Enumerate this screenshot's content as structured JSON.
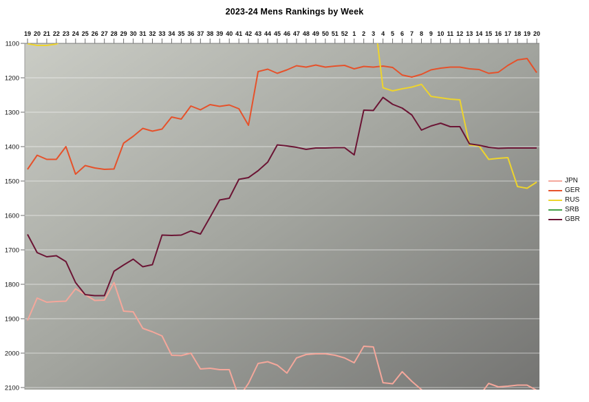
{
  "chart_data": {
    "type": "line",
    "title": "2023-24 Mens Rankings by Week",
    "xlabel": "",
    "ylabel": "",
    "x_axis_position": "top",
    "x_tick_labels": [
      "19",
      "20",
      "21",
      "22",
      "23",
      "24",
      "25",
      "26",
      "27",
      "28",
      "29",
      "30",
      "31",
      "32",
      "33",
      "34",
      "35",
      "36",
      "37",
      "38",
      "39",
      "40",
      "41",
      "42",
      "43",
      "44",
      "45",
      "46",
      "47",
      "48",
      "49",
      "50",
      "51",
      "52",
      "1",
      "2",
      "3",
      "4",
      "5",
      "6",
      "7",
      "8",
      "9",
      "10",
      "11",
      "12",
      "13",
      "14",
      "15",
      "16",
      "17",
      "18",
      "19",
      "20"
    ],
    "y_ticks": [
      1100,
      1200,
      1300,
      1400,
      1500,
      1600,
      1700,
      1800,
      1900,
      2000,
      2100
    ],
    "y_axis": {
      "min": 1100,
      "max": 2100,
      "top_value_at_top": 1100,
      "note": "ranking points axis, 1100 at top; series values outside 1100-2100 are clipped (not visible)"
    },
    "grid": "horizontal",
    "legend_position": "right",
    "plot_background": {
      "gradient_from": "#caccc5",
      "gradient_mid": "#a2a49e",
      "gradient_to": "#747472"
    },
    "series": [
      {
        "name": "JPN",
        "color": "#f5a79b",
        "values": [
          1905,
          1840,
          1852,
          1850,
          1849,
          1813,
          1830,
          1847,
          1846,
          1795,
          1878,
          1880,
          1928,
          1938,
          1950,
          2006,
          2007,
          2000,
          2046,
          2044,
          2048,
          2048,
          2128,
          2088,
          2030,
          2025,
          2035,
          2058,
          2014,
          2004,
          2002,
          2002,
          2006,
          2014,
          2028,
          1980,
          1982,
          2086,
          2089,
          2054,
          2082,
          2106,
          2130,
          2140,
          2140,
          2138,
          2132,
          2125,
          2088,
          2098,
          2096,
          2093,
          2093,
          2108
        ]
      },
      {
        "name": "GER",
        "color": "#e6512a",
        "values": [
          1466,
          1425,
          1437,
          1437,
          1400,
          1480,
          1455,
          1462,
          1466,
          1465,
          1390,
          1370,
          1347,
          1355,
          1349,
          1314,
          1320,
          1282,
          1293,
          1278,
          1283,
          1279,
          1290,
          1338,
          1182,
          1175,
          1187,
          1177,
          1165,
          1169,
          1163,
          1169,
          1166,
          1164,
          1174,
          1167,
          1169,
          1166,
          1170,
          1192,
          1198,
          1190,
          1177,
          1172,
          1169,
          1169,
          1174,
          1176,
          1187,
          1184,
          1164,
          1148,
          1144,
          1185
        ]
      },
      {
        "name": "RUS",
        "color": "#eed42c",
        "values": [
          1101,
          1106,
          1106,
          1102,
          1085,
          null,
          null,
          null,
          null,
          null,
          null,
          null,
          null,
          null,
          null,
          null,
          null,
          null,
          null,
          null,
          null,
          null,
          null,
          null,
          null,
          null,
          null,
          null,
          null,
          null,
          null,
          null,
          null,
          null,
          null,
          null,
          1000,
          1229,
          1238,
          1232,
          1227,
          1219,
          1254,
          1258,
          1262,
          1264,
          1395,
          1398,
          1437,
          1434,
          1432,
          1516,
          1521,
          1503
        ]
      },
      {
        "name": "SRB",
        "color": "#43a047",
        "values": []
      },
      {
        "name": "GBR",
        "color": "#6b1434",
        "values": [
          1655,
          1708,
          1720,
          1717,
          1734,
          1795,
          1830,
          1833,
          1833,
          1762,
          1744,
          1727,
          1749,
          1743,
          1657,
          1658,
          1657,
          1645,
          1654,
          1605,
          1555,
          1550,
          1495,
          1490,
          1470,
          1445,
          1395,
          1398,
          1402,
          1408,
          1404,
          1404,
          1403,
          1403,
          1424,
          1294,
          1295,
          1257,
          1277,
          1288,
          1308,
          1352,
          1340,
          1332,
          1342,
          1342,
          1392,
          1396,
          1402,
          1405,
          1404,
          1404,
          1404,
          1404
        ]
      }
    ]
  }
}
